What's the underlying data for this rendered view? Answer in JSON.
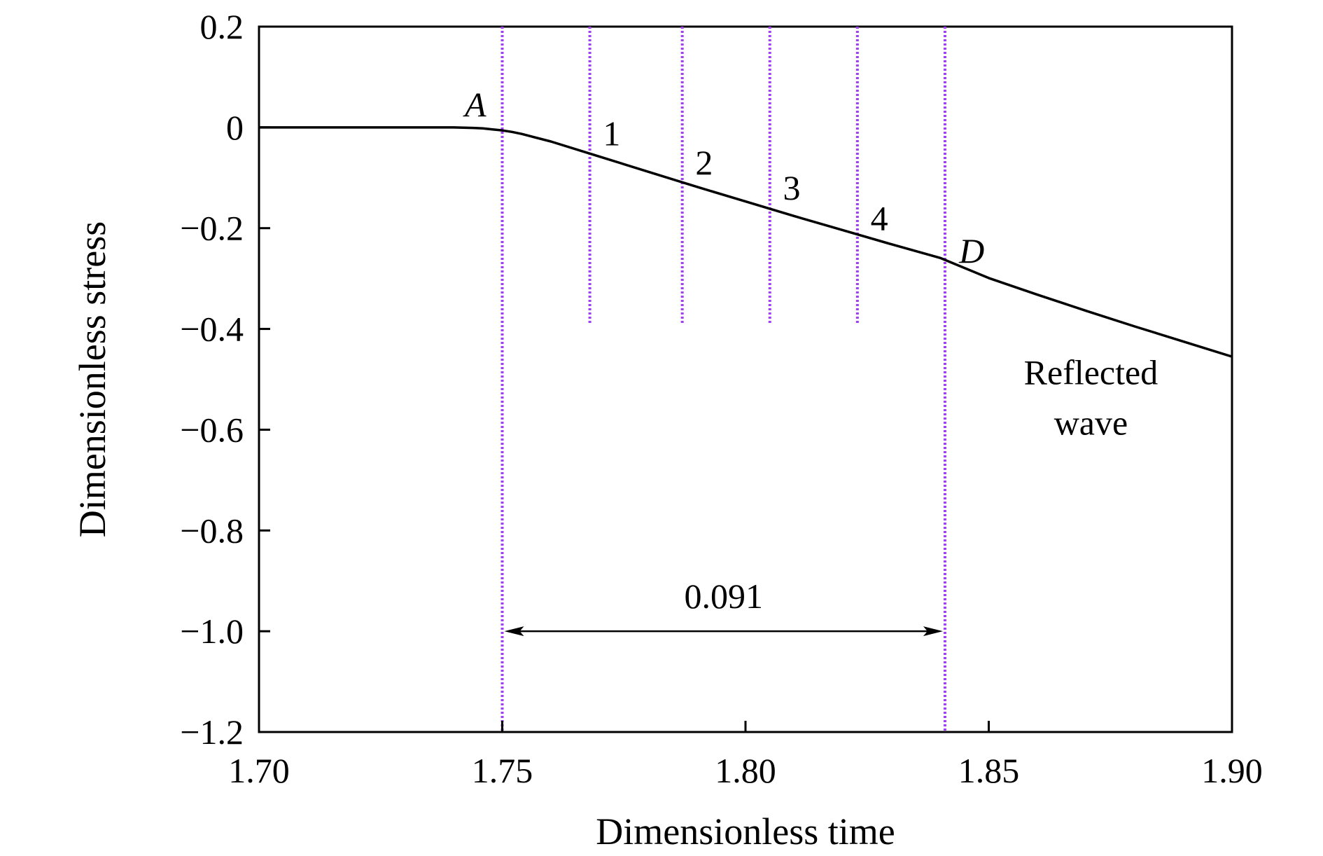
{
  "chart_data": {
    "type": "line",
    "title": "",
    "xlabel": "Dimensionless time",
    "ylabel": "Dimensionless stress",
    "xlim": [
      1.7,
      1.9
    ],
    "ylim": [
      -1.2,
      0.2
    ],
    "x_ticks": [
      1.7,
      1.75,
      1.8,
      1.85,
      1.9
    ],
    "x_tick_labels": [
      "1.70",
      "1.75",
      "1.80",
      "1.85",
      "1.90"
    ],
    "y_ticks": [
      0.2,
      0,
      -0.2,
      -0.4,
      -0.6,
      -0.8,
      -1.0,
      -1.2
    ],
    "y_tick_labels": [
      "0.2",
      "0",
      "−0.2",
      "−0.4",
      "−0.6",
      "−0.8",
      "−1.0",
      "−1.2"
    ],
    "grid": false,
    "series": [
      {
        "color": "#000000",
        "x": [
          1.7,
          1.74,
          1.744,
          1.746,
          1.748,
          1.75,
          1.752,
          1.754,
          1.756,
          1.76,
          1.77,
          1.78,
          1.79,
          1.8,
          1.81,
          1.82,
          1.83,
          1.84,
          1.85,
          1.86,
          1.87,
          1.88,
          1.89,
          1.9
        ],
        "y": [
          0,
          0,
          -0.001,
          -0.002,
          -0.004,
          -0.006,
          -0.009,
          -0.013,
          -0.018,
          -0.028,
          -0.058,
          -0.088,
          -0.118,
          -0.147,
          -0.176,
          -0.204,
          -0.232,
          -0.259,
          -0.299,
          -0.332,
          -0.364,
          -0.395,
          -0.425,
          -0.455
        ]
      }
    ],
    "vertical_markers": [
      {
        "x": 1.75,
        "label": "A",
        "italic": true,
        "y_bottom": -1.2,
        "label_x": 1.7445,
        "label_y": 0.045
      },
      {
        "x": 1.768,
        "label": "1",
        "italic": false,
        "y_bottom": -0.39,
        "label_x": 1.7725,
        "label_y": -0.012
      },
      {
        "x": 1.787,
        "label": "2",
        "italic": false,
        "y_bottom": -0.39,
        "label_x": 1.7915,
        "label_y": -0.07
      },
      {
        "x": 1.805,
        "label": "3",
        "italic": false,
        "y_bottom": -0.39,
        "label_x": 1.8095,
        "label_y": -0.12
      },
      {
        "x": 1.823,
        "label": "4",
        "italic": false,
        "y_bottom": -0.39,
        "label_x": 1.8275,
        "label_y": -0.18
      },
      {
        "x": 1.841,
        "label": "D",
        "italic": true,
        "y_bottom": -1.2,
        "label_x": 1.8465,
        "label_y": -0.245
      }
    ],
    "marker_color": "#a040f0",
    "dimension_arrow": {
      "x_start": 1.75,
      "x_end": 1.841,
      "y": -1.0,
      "label": "0.091",
      "label_x": 1.7955,
      "label_y": -0.93
    },
    "annotation": {
      "lines": [
        "Reflected",
        "wave"
      ],
      "x": 1.871,
      "y": -0.51
    }
  }
}
